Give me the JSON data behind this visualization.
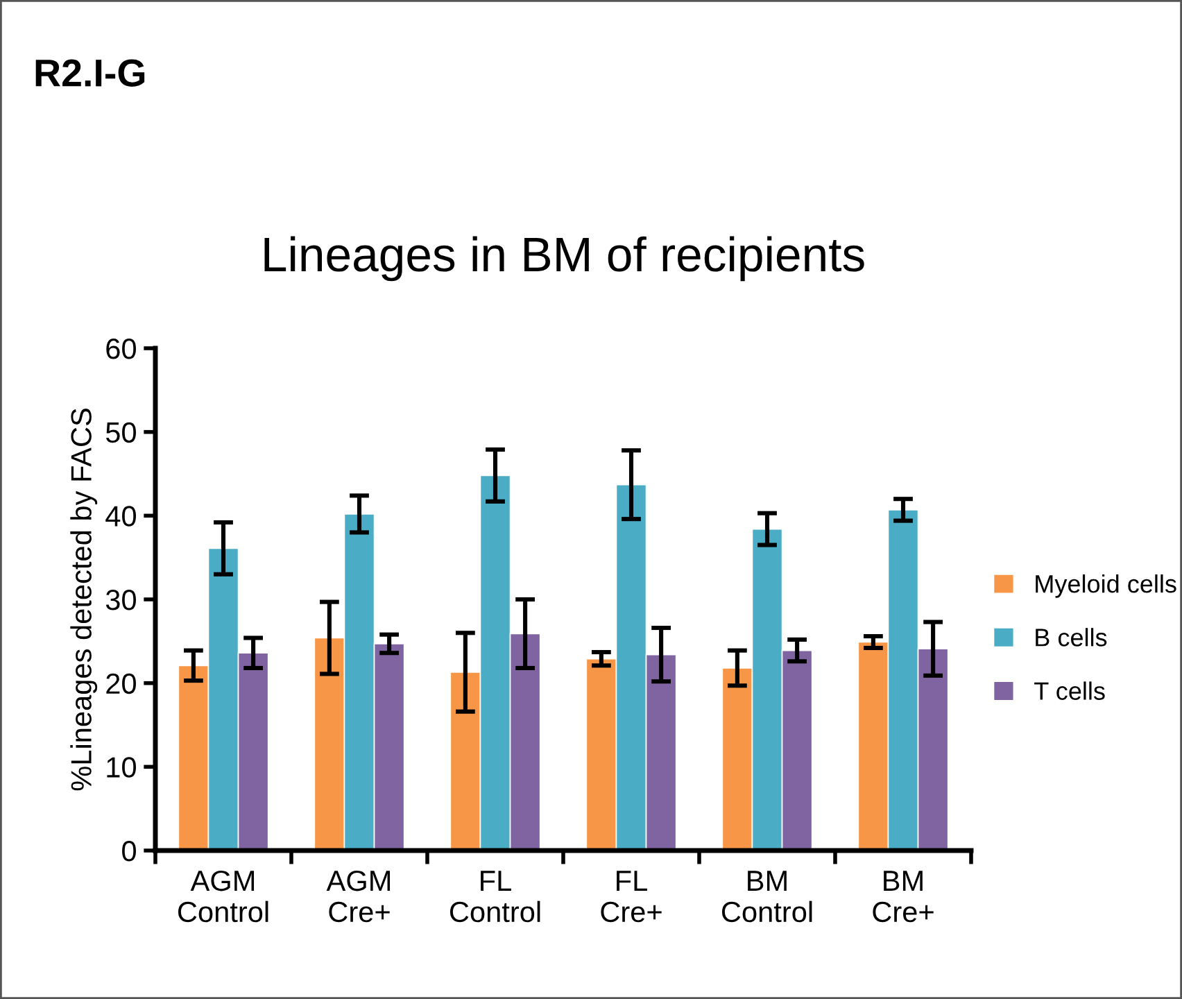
{
  "chart_data": {
    "type": "bar",
    "title": "Lineages in BM of recipients",
    "ylabel": "%Lineages detected by FACS",
    "annotations": [
      "R2.I-G"
    ],
    "categories": [
      "AGM\nControl",
      "AGM\nCre+",
      "FL\nControl",
      "FL\nCre+",
      "BM\nControl",
      "BM\nCre+"
    ],
    "series": [
      {
        "name": "Myeloid cells",
        "color": "#f79646",
        "values": [
          22.1,
          25.4,
          21.3,
          22.9,
          21.8,
          24.9
        ],
        "errors": [
          1.8,
          4.3,
          4.7,
          0.8,
          2.1,
          0.7
        ]
      },
      {
        "name": "B cells",
        "color": "#4bacc6",
        "values": [
          36.1,
          40.2,
          44.8,
          43.7,
          38.4,
          40.7
        ],
        "errors": [
          3.1,
          2.2,
          3.1,
          4.1,
          1.9,
          1.3
        ]
      },
      {
        "name": "T cells",
        "color": "#8064a2",
        "values": [
          23.6,
          24.7,
          25.9,
          23.4,
          23.9,
          24.1
        ],
        "errors": [
          1.8,
          1.1,
          4.1,
          3.2,
          1.3,
          3.2
        ]
      }
    ],
    "ylim": [
      0,
      60
    ],
    "yticks": [
      0,
      10,
      20,
      30,
      40,
      50,
      60
    ],
    "grid": false,
    "legend": "right"
  }
}
